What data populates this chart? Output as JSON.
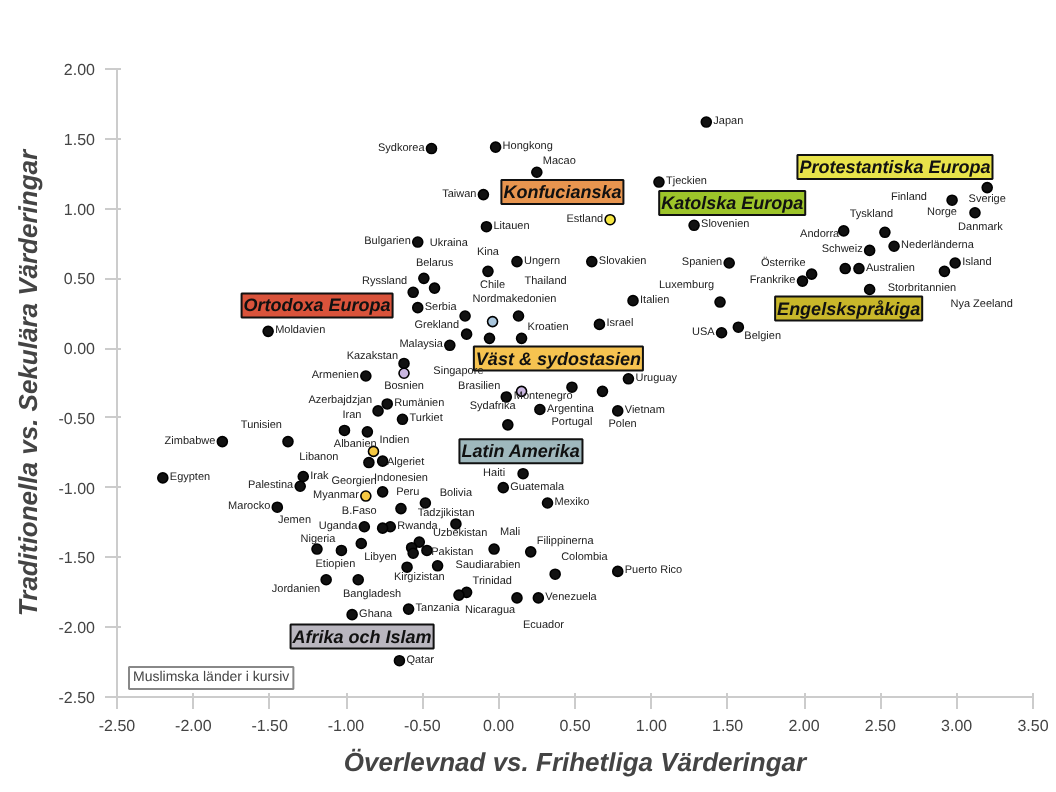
{
  "chart_data": {
    "type": "scatter",
    "xlabel": "Överlevnad vs. Frihetliga Värderingar",
    "ylabel": "Traditionella vs. Sekulära Värderingar",
    "xlim": [
      -2.5,
      3.5
    ],
    "ylim": [
      -2.5,
      2.0
    ],
    "xticks": [
      {
        "value": -2.5,
        "label": "-2.50"
      },
      {
        "value": -2.0,
        "label": "-2.00"
      },
      {
        "value": -1.5,
        "label": "-1.50"
      },
      {
        "value": -1.0,
        "label": "-1.00"
      },
      {
        "value": -0.5,
        "label": "-0.50"
      },
      {
        "value": 0,
        "label": "0.00"
      },
      {
        "value": 0.5,
        "label": "0.50"
      },
      {
        "value": 1.0,
        "label": "1.00"
      },
      {
        "value": 1.5,
        "label": "1.50"
      },
      {
        "value": 2.0,
        "label": "2.00"
      },
      {
        "value": 2.5,
        "label": "2.50"
      },
      {
        "value": 3.0,
        "label": "3.00"
      },
      {
        "value": 3.5,
        "label": "3.50"
      }
    ],
    "yticks": [
      {
        "value": -2.5,
        "label": "-2.50"
      },
      {
        "value": -2.0,
        "label": "-2.00"
      },
      {
        "value": -1.5,
        "label": "-1.50"
      },
      {
        "value": -1.0,
        "label": "-1.00"
      },
      {
        "value": -0.5,
        "label": "-0.50"
      },
      {
        "value": 0,
        "label": "0.00"
      },
      {
        "value": 0.5,
        "label": "0.50"
      },
      {
        "value": 1.0,
        "label": "1.00"
      },
      {
        "value": 1.5,
        "label": "1.50"
      },
      {
        "value": 2.0,
        "label": "2.00"
      }
    ],
    "grid": false,
    "marker": "circle",
    "series": [
      {
        "name": "Afrika och Islam",
        "color": "#b9b6bf",
        "x": [
          -0.79,
          -0.63,
          -0.86,
          -1.01,
          -1.38,
          -1.81,
          -0.82,
          -0.76,
          -0.85,
          -2.2,
          -1.28,
          -1.3,
          -0.87,
          -1.45,
          -0.64,
          -0.88,
          -0.71,
          -0.76,
          -0.9,
          -1.19,
          -1.03,
          -0.52,
          -0.57,
          -0.56,
          -0.47,
          -0.6,
          -0.4,
          -1.13,
          -0.92,
          -0.96,
          -0.59,
          -0.65,
          -0.03
        ],
        "values": [
          -0.45,
          -0.51,
          -0.6,
          -0.59,
          -0.67,
          -0.67,
          -0.74,
          -0.81,
          -0.82,
          -0.93,
          -0.92,
          -0.99,
          -1.06,
          -1.14,
          -1.15,
          -1.28,
          -1.28,
          -1.29,
          -1.4,
          -1.44,
          -1.45,
          -1.39,
          -1.43,
          -1.47,
          -1.45,
          -1.57,
          -1.56,
          -1.66,
          -1.66,
          -1.91,
          -1.87,
          -2.24,
          -1.44
        ],
        "colors": [
          "#111111",
          "#111111",
          "#111111",
          "#111111",
          "#111111",
          "#111111",
          "#f5c842",
          "#111111",
          "#111111",
          "#111111",
          "#111111",
          "#111111",
          "#f5c842",
          "#111111",
          "#111111",
          "#111111",
          "#111111",
          "#111111",
          "#111111",
          "#111111",
          "#111111",
          "#111111",
          "#111111",
          "#111111",
          "#111111",
          "#111111",
          "#111111",
          "#111111",
          "#111111",
          "#111111",
          "#111111",
          "#111111",
          "#111111"
        ]
      },
      {
        "name": "Latin Amerika",
        "color": "#9fb8bd",
        "x": [
          0.85,
          0.05,
          0.27,
          0.16,
          0.03,
          0.32,
          -0.48,
          -0.28,
          0.21,
          0.78,
          0.37,
          0.12,
          0.26,
          -0.21,
          -0.26
        ],
        "values": [
          -0.22,
          -0.35,
          -0.44,
          -0.9,
          -1.0,
          -1.11,
          -1.11,
          -1.26,
          -1.46,
          -1.6,
          -1.62,
          -1.79,
          -1.79,
          -1.75,
          -1.77
        ],
        "colors": [
          "#111111",
          "#111111",
          "#111111",
          "#111111",
          "#111111",
          "#111111",
          "#111111",
          "#111111",
          "#111111",
          "#111111",
          "#111111",
          "#111111",
          "#111111",
          "#111111",
          "#111111"
        ]
      },
      {
        "name": "Ortodoxa Europa",
        "color": "#d9533b",
        "x": [
          -0.53,
          -0.49,
          -0.42,
          -0.56,
          -0.53,
          -0.22,
          -0.21,
          -1.51,
          -0.87,
          -0.62,
          -0.62,
          -0.73,
          0.06,
          -0.76
        ],
        "values": [
          0.76,
          0.5,
          0.43,
          0.4,
          0.29,
          0.23,
          0.1,
          0.12,
          -0.2,
          -0.11,
          -0.18,
          -0.4,
          -0.55,
          -1.03
        ],
        "colors": [
          "#111111",
          "#111111",
          "#111111",
          "#111111",
          "#111111",
          "#111111",
          "#111111",
          "#111111",
          "#111111",
          "#111111",
          "#c9b6e0",
          "#111111",
          "#111111",
          "#111111"
        ]
      },
      {
        "name": "Konfucianska",
        "color": "#e8954f",
        "x": [
          1.36,
          -0.44,
          -0.02,
          0.25,
          -0.1,
          -0.07
        ],
        "values": [
          1.62,
          1.43,
          1.44,
          1.26,
          1.1,
          0.55
        ],
        "colors": [
          "#111111",
          "#111111",
          "#111111",
          "#111111",
          "#111111",
          "#111111"
        ]
      },
      {
        "name": "Katolska Europa",
        "color": "#9dc42a",
        "x": [
          1.05,
          -0.08,
          0.73,
          1.28,
          0.12,
          0.61,
          1.51,
          0.88,
          1.45,
          1.57,
          1.99,
          2.05,
          2.27,
          0.15
        ],
        "values": [
          1.19,
          0.87,
          0.92,
          0.88,
          0.62,
          0.62,
          0.61,
          0.34,
          0.33,
          0.15,
          0.48,
          0.53,
          0.57,
          0.07
        ],
        "colors": [
          "#111111",
          "#111111",
          "#f5e642",
          "#111111",
          "#111111",
          "#111111",
          "#111111",
          "#111111",
          "#111111",
          "#111111",
          "#111111",
          "#111111",
          "#111111",
          "#111111"
        ]
      },
      {
        "name": "Väst & sydostasien",
        "color": "#f6c350",
        "x": [
          0.13,
          0.66,
          -0.04,
          -0.06,
          -0.32,
          0.15,
          0.48,
          0.68,
          0.78
        ],
        "values": [
          0.23,
          0.17,
          0.19,
          0.07,
          0.02,
          -0.31,
          -0.28,
          -0.31,
          -0.45
        ],
        "colors": [
          "#111111",
          "#111111",
          "#a9c6dd",
          "#111111",
          "#111111",
          "#c9b6e0",
          "#111111",
          "#111111",
          "#111111"
        ]
      },
      {
        "name": "Engelskspråkiga",
        "color": "#c9b72a",
        "x": [
          1.46,
          2.36,
          2.43,
          2.92
        ],
        "values": [
          0.11,
          0.57,
          0.42,
          0.55
        ],
        "colors": [
          "#111111",
          "#111111",
          "#111111",
          "#111111"
        ]
      },
      {
        "name": "Protestantiska Europa",
        "color": "#e8e34a",
        "x": [
          2.26,
          2.53,
          2.59,
          2.43,
          2.97,
          3.2,
          3.12,
          2.99
        ],
        "values": [
          0.84,
          0.83,
          0.73,
          0.7,
          1.06,
          1.15,
          0.97,
          0.61
        ],
        "colors": [
          "#111111",
          "#111111",
          "#111111",
          "#111111",
          "#111111",
          "#111111",
          "#111111",
          "#111111"
        ]
      }
    ],
    "annotations": [
      {
        "text": "Azerbajdzjan",
        "x": -0.79,
        "y": -0.45
      },
      {
        "text": "Turkiet",
        "x": -0.63,
        "y": -0.51
      },
      {
        "text": "Iran",
        "x": -0.86,
        "y": -0.6
      },
      {
        "text": "Libanon",
        "x": -1.01,
        "y": -0.59
      },
      {
        "text": "Tunisien",
        "x": -1.38,
        "y": -0.67
      },
      {
        "text": "Zimbabwe",
        "x": -1.81,
        "y": -0.67
      },
      {
        "text": "Indien",
        "x": -0.82,
        "y": -0.74
      },
      {
        "text": "Albanien",
        "x": -0.76,
        "y": -0.81
      },
      {
        "text": "Algeriet",
        "x": -0.85,
        "y": -0.82
      },
      {
        "text": "Egypten",
        "x": -2.2,
        "y": -0.93
      },
      {
        "text": "Irak",
        "x": -1.28,
        "y": -0.92
      },
      {
        "text": "Palestina",
        "x": -1.3,
        "y": -0.99
      },
      {
        "text": "Myanmar",
        "x": -0.87,
        "y": -1.06
      },
      {
        "text": "Marocko",
        "x": -1.45,
        "y": -1.14
      },
      {
        "text": "Indonesien",
        "x": -0.64,
        "y": -1.15
      },
      {
        "text": "Uganda",
        "x": -0.88,
        "y": -1.28
      },
      {
        "text": "Rwanda",
        "x": -0.71,
        "y": -1.28
      },
      {
        "text": "B.Faso",
        "x": -0.76,
        "y": -1.29
      },
      {
        "text": "Etiopien",
        "x": -0.9,
        "y": -1.4
      },
      {
        "text": "Jemen",
        "x": -1.19,
        "y": -1.44
      },
      {
        "text": "Nigeria",
        "x": -1.03,
        "y": -1.45
      },
      {
        "text": "Kirgizistan",
        "x": -0.52,
        "y": -1.39
      },
      {
        "text": "Tadzjikistan",
        "x": -0.57,
        "y": -1.43
      },
      {
        "text": "Pakistan",
        "x": -0.56,
        "y": -1.47
      },
      {
        "text": "Uzbekistan",
        "x": -0.47,
        "y": -1.45
      },
      {
        "text": "Bangladesh",
        "x": -0.6,
        "y": -1.57
      },
      {
        "text": "Saudiarabien",
        "x": -0.4,
        "y": -1.56
      },
      {
        "text": "Jordanien",
        "x": -1.13,
        "y": -1.66
      },
      {
        "text": "Libyen",
        "x": -0.92,
        "y": -1.66
      },
      {
        "text": "Ghana",
        "x": -0.96,
        "y": -1.91
      },
      {
        "text": "Tanzania",
        "x": -0.59,
        "y": -1.87
      },
      {
        "text": "Qatar",
        "x": -0.65,
        "y": -2.24
      },
      {
        "text": "Mali",
        "x": -0.03,
        "y": -1.44
      },
      {
        "text": "Uruguay",
        "x": 0.85,
        "y": -0.22
      },
      {
        "text": "Brasilien",
        "x": 0.05,
        "y": -0.35
      },
      {
        "text": "Argentina",
        "x": 0.27,
        "y": -0.44
      },
      {
        "text": "Haiti",
        "x": 0.16,
        "y": -0.9
      },
      {
        "text": "Guatemala",
        "x": 0.03,
        "y": -1.0
      },
      {
        "text": "Mexiko",
        "x": 0.32,
        "y": -1.11
      },
      {
        "text": "Peru",
        "x": -0.48,
        "y": -1.11
      },
      {
        "text": "Bolivia",
        "x": -0.28,
        "y": -1.26
      },
      {
        "text": "Filippinerna",
        "x": 0.21,
        "y": -1.46
      },
      {
        "text": "Puerto Rico",
        "x": 0.78,
        "y": -1.6
      },
      {
        "text": "Colombia",
        "x": 0.37,
        "y": -1.62
      },
      {
        "text": "Ecuador",
        "x": 0.12,
        "y": -1.79
      },
      {
        "text": "Venezuela",
        "x": 0.26,
        "y": -1.79
      },
      {
        "text": "Trinidad",
        "x": -0.21,
        "y": -1.75
      },
      {
        "text": "Nicaragua",
        "x": -0.26,
        "y": -1.77
      },
      {
        "text": "Bulgarien",
        "x": -0.53,
        "y": 0.76
      },
      {
        "text": "Ukraina",
        "x": -0.49,
        "y": 0.5
      },
      {
        "text": "Belarus",
        "x": -0.42,
        "y": 0.43
      },
      {
        "text": "Ryssland",
        "x": -0.56,
        "y": 0.4
      },
      {
        "text": "Serbia",
        "x": -0.53,
        "y": 0.29
      },
      {
        "text": "Grekland",
        "x": -0.22,
        "y": 0.23
      },
      {
        "text": "Nordmakedonien",
        "x": -0.21,
        "y": 0.1
      },
      {
        "text": "Moldavien",
        "x": -1.51,
        "y": 0.12
      },
      {
        "text": "Armenien",
        "x": -0.87,
        "y": -0.2
      },
      {
        "text": "Bosnien",
        "x": -0.62,
        "y": -0.11
      },
      {
        "text": "Kazakstan",
        "x": -0.62,
        "y": -0.18
      },
      {
        "text": "Rumänien",
        "x": -0.73,
        "y": -0.4
      },
      {
        "text": "Montenegro",
        "x": 0.06,
        "y": -0.55
      },
      {
        "text": "Georgien",
        "x": -0.76,
        "y": -1.03
      },
      {
        "text": "Japan",
        "x": 1.36,
        "y": 1.62
      },
      {
        "text": "Sydkorea",
        "x": -0.44,
        "y": 1.43
      },
      {
        "text": "Hongkong",
        "x": -0.02,
        "y": 1.44
      },
      {
        "text": "Macao",
        "x": 0.25,
        "y": 1.26
      },
      {
        "text": "Taiwan",
        "x": -0.1,
        "y": 1.1
      },
      {
        "text": "Kina",
        "x": -0.07,
        "y": 0.55
      },
      {
        "text": "Tjeckien",
        "x": 1.05,
        "y": 1.19
      },
      {
        "text": "Litauen",
        "x": -0.08,
        "y": 0.87
      },
      {
        "text": "Estland",
        "x": 0.73,
        "y": 0.92
      },
      {
        "text": "Slovenien",
        "x": 1.28,
        "y": 0.88
      },
      {
        "text": "Ungern",
        "x": 0.12,
        "y": 0.62
      },
      {
        "text": "Slovakien",
        "x": 0.61,
        "y": 0.62
      },
      {
        "text": "Spanien",
        "x": 1.51,
        "y": 0.61
      },
      {
        "text": "Italien",
        "x": 0.88,
        "y": 0.34
      },
      {
        "text": "Luxemburg",
        "x": 1.45,
        "y": 0.33
      },
      {
        "text": "Belgien",
        "x": 1.57,
        "y": 0.15
      },
      {
        "text": "Frankrike",
        "x": 1.99,
        "y": 0.48
      },
      {
        "text": "Österrike",
        "x": 2.05,
        "y": 0.53
      },
      {
        "text": "Andorra",
        "x": 2.27,
        "y": 0.57
      },
      {
        "text": "Kroatien",
        "x": 0.15,
        "y": 0.07
      },
      {
        "text": "Thailand",
        "x": 0.13,
        "y": 0.23
      },
      {
        "text": "Israel",
        "x": 0.66,
        "y": 0.17
      },
      {
        "text": "Chile",
        "x": -0.04,
        "y": 0.19
      },
      {
        "text": "Singapore",
        "x": -0.06,
        "y": 0.07
      },
      {
        "text": "Malaysia",
        "x": -0.32,
        "y": 0.02
      },
      {
        "text": "Sydafrika",
        "x": 0.15,
        "y": -0.31
      },
      {
        "text": "Portugal",
        "x": 0.48,
        "y": -0.28
      },
      {
        "text": "Polen",
        "x": 0.68,
        "y": -0.31
      },
      {
        "text": "Vietnam",
        "x": 0.78,
        "y": -0.45
      },
      {
        "text": "USA",
        "x": 1.46,
        "y": 0.11
      },
      {
        "text": "Australien",
        "x": 2.36,
        "y": 0.57
      },
      {
        "text": "Storbritannien",
        "x": 2.43,
        "y": 0.42
      },
      {
        "text": "Nya Zeeland",
        "x": 2.92,
        "y": 0.55
      },
      {
        "text": "Tyskland",
        "x": 2.26,
        "y": 0.84
      },
      {
        "text": "Finland",
        "x": 2.53,
        "y": 0.83
      },
      {
        "text": "Nederländerna",
        "x": 2.59,
        "y": 0.73
      },
      {
        "text": "Schweiz",
        "x": 2.43,
        "y": 0.7
      },
      {
        "text": "Danmark",
        "x": 2.97,
        "y": 1.06
      },
      {
        "text": "Sverige",
        "x": 3.2,
        "y": 1.15
      },
      {
        "text": "Norge",
        "x": 3.12,
        "y": 0.97
      },
      {
        "text": "Island",
        "x": 2.99,
        "y": 0.61
      },
      "Muslimska länder i kursiv"
    ]
  }
}
